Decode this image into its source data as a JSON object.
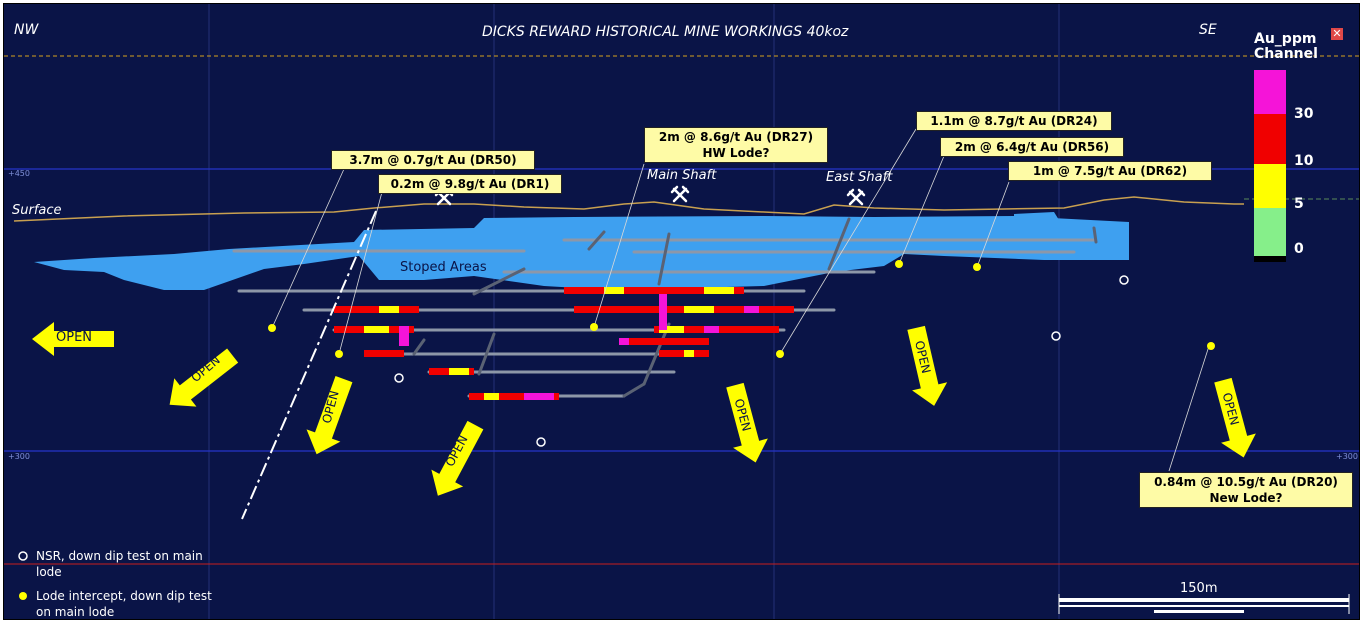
{
  "header": {
    "title": "DICKS REWARD HISTORICAL MINE WORKINGS 40koz",
    "left_direction": "NW",
    "right_direction": "SE"
  },
  "grid": {
    "rl_upper": "+450",
    "rl_lower": "+300",
    "rl_lower_right": "+300"
  },
  "labels": {
    "surface": "Surface",
    "stoped_areas": "Stoped Areas",
    "main_shaft": "Main Shaft",
    "east_shaft": "East Shaft",
    "open": "OPEN"
  },
  "callouts": {
    "dr50": "3.7m @ 0.7g/t Au (DR50)",
    "dr1": "0.2m @ 9.8g/t Au (DR1)",
    "dr27_line1": "2m @ 8.6g/t Au (DR27)",
    "dr27_line2": "HW Lode?",
    "dr24": "1.1m @ 8.7g/t Au (DR24)",
    "dr56": "2m @ 6.4g/t Au (DR56)",
    "dr62": "1m @ 7.5g/t Au (DR62)",
    "dr20_line1": "0.84m @ 10.5g/t Au (DR20)",
    "dr20_line2": "New Lode?"
  },
  "legend": {
    "title_line1": "Au_ppm",
    "title_line2": "Channel",
    "values": [
      "30",
      "10",
      "5",
      "0"
    ],
    "colors": [
      "#f514d8",
      "#f00000",
      "#ffff00",
      "#86ef8a"
    ],
    "nsr_text_line1": "NSR, down dip test on main",
    "nsr_text_line2": "lode",
    "lode_text_line1": "Lode intercept, down dip test",
    "lode_text_line2": "on main lode"
  },
  "scale_bar": {
    "label": "150m"
  },
  "colors": {
    "background": "#0a1447",
    "stope": "#3ea0f0",
    "arrow": "#ffff00",
    "callout_bg": "#fefba6",
    "surface_line": "#c8a050",
    "grid_line": "#2634c8"
  }
}
